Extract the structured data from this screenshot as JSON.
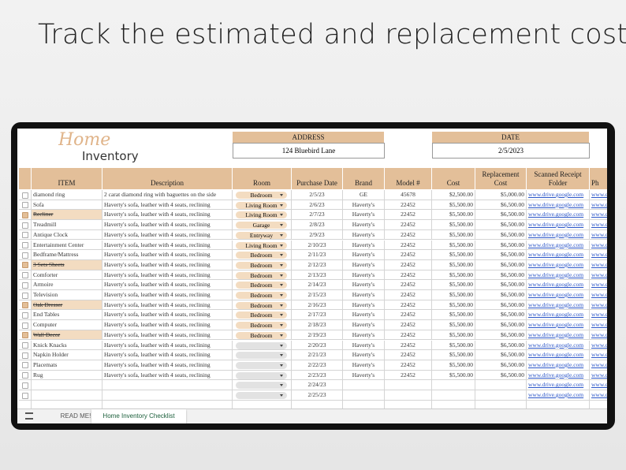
{
  "heading": "Track the estimated and replacement cost",
  "logo": {
    "script": "Home",
    "word": "Inventory"
  },
  "address": {
    "label": "ADDRESS",
    "value": "124 Bluebird Lane"
  },
  "date": {
    "label": "DATE",
    "value": "2/5/2023"
  },
  "columns": [
    "ITEM",
    "Description",
    "Room",
    "Purchase Date",
    "Brand",
    "Model #",
    "Cost",
    "Replacement Cost",
    "Scanned Receipt Folder",
    "Ph"
  ],
  "rows": [
    {
      "checked": false,
      "item": "diamond ring",
      "description": "2 carat diamond ring with baguettes on the side",
      "room": "Bedroom",
      "date": "2/5/23",
      "brand": "GE",
      "model": "45678",
      "cost": "$2,500.00",
      "replacement": "$5,000.00",
      "link": "www.drive.google.com",
      "link2": "www.dr"
    },
    {
      "checked": false,
      "item": "Sofa",
      "description": "Haverty's sofa, leather with 4 seats, reclining",
      "room": "Living Room",
      "date": "2/6/23",
      "brand": "Haverty's",
      "model": "22452",
      "cost": "$5,500.00",
      "replacement": "$6,500.00",
      "link": "www.drive.google.com",
      "link2": "www.dr"
    },
    {
      "checked": true,
      "item": "Recliner",
      "description": "Haverty's sofa, leather with 4 seats, reclining",
      "room": "Living Room",
      "date": "2/7/23",
      "brand": "Haverty's",
      "model": "22452",
      "cost": "$5,500.00",
      "replacement": "$6,500.00",
      "link": "www.drive.google.com",
      "link2": "www.dr"
    },
    {
      "checked": false,
      "item": "Treadmill",
      "description": "Haverty's sofa, leather with 4 seats, reclining",
      "room": "Garage",
      "date": "2/8/23",
      "brand": "Haverty's",
      "model": "22452",
      "cost": "$5,500.00",
      "replacement": "$6,500.00",
      "link": "www.drive.google.com",
      "link2": "www.dr"
    },
    {
      "checked": false,
      "item": "Antique Clock",
      "description": "Haverty's sofa, leather with 4 seats, reclining",
      "room": "Entryway",
      "date": "2/9/23",
      "brand": "Haverty's",
      "model": "22452",
      "cost": "$5,500.00",
      "replacement": "$6,500.00",
      "link": "www.drive.google.com",
      "link2": "www.dr"
    },
    {
      "checked": false,
      "item": "Entertainment Center",
      "description": "Haverty's sofa, leather with 4 seats, reclining",
      "room": "Living Room",
      "date": "2/10/23",
      "brand": "Haverty's",
      "model": "22452",
      "cost": "$5,500.00",
      "replacement": "$6,500.00",
      "link": "www.drive.google.com",
      "link2": "www.dr"
    },
    {
      "checked": false,
      "item": "Bedframe/Mattress",
      "description": "Haverty's sofa, leather with 4 seats, reclining",
      "room": "Bedroom",
      "date": "2/11/23",
      "brand": "Haverty's",
      "model": "22452",
      "cost": "$5,500.00",
      "replacement": "$6,500.00",
      "link": "www.drive.google.com",
      "link2": "www.dr"
    },
    {
      "checked": true,
      "item": "3 Sets Sheets",
      "description": "Haverty's sofa, leather with 4 seats, reclining",
      "room": "Bedroom",
      "date": "2/12/23",
      "brand": "Haverty's",
      "model": "22452",
      "cost": "$5,500.00",
      "replacement": "$6,500.00",
      "link": "www.drive.google.com",
      "link2": "www.dr"
    },
    {
      "checked": false,
      "item": "Comforter",
      "description": "Haverty's sofa, leather with 4 seats, reclining",
      "room": "Bedroom",
      "date": "2/13/23",
      "brand": "Haverty's",
      "model": "22452",
      "cost": "$5,500.00",
      "replacement": "$6,500.00",
      "link": "www.drive.google.com",
      "link2": "www.dr"
    },
    {
      "checked": false,
      "item": "Armoire",
      "description": "Haverty's sofa, leather with 4 seats, reclining",
      "room": "Bedroom",
      "date": "2/14/23",
      "brand": "Haverty's",
      "model": "22452",
      "cost": "$5,500.00",
      "replacement": "$6,500.00",
      "link": "www.drive.google.com",
      "link2": "www.dr"
    },
    {
      "checked": false,
      "item": "Television",
      "description": "Haverty's sofa, leather with 4 seats, reclining",
      "room": "Bedroom",
      "date": "2/15/23",
      "brand": "Haverty's",
      "model": "22452",
      "cost": "$5,500.00",
      "replacement": "$6,500.00",
      "link": "www.drive.google.com",
      "link2": "www.dr"
    },
    {
      "checked": true,
      "item": "Oak Dresser",
      "description": "Haverty's sofa, leather with 4 seats, reclining",
      "room": "Bedroom",
      "date": "2/16/23",
      "brand": "Haverty's",
      "model": "22452",
      "cost": "$5,500.00",
      "replacement": "$6,500.00",
      "link": "www.drive.google.com",
      "link2": "www.dr"
    },
    {
      "checked": false,
      "item": "End Tables",
      "description": "Haverty's sofa, leather with 4 seats, reclining",
      "room": "Bedroom",
      "date": "2/17/23",
      "brand": "Haverty's",
      "model": "22452",
      "cost": "$5,500.00",
      "replacement": "$6,500.00",
      "link": "www.drive.google.com",
      "link2": "www.dr"
    },
    {
      "checked": false,
      "item": "Computer",
      "description": "Haverty's sofa, leather with 4 seats, reclining",
      "room": "Bedroom",
      "date": "2/18/23",
      "brand": "Haverty's",
      "model": "22452",
      "cost": "$5,500.00",
      "replacement": "$6,500.00",
      "link": "www.drive.google.com",
      "link2": "www.dr"
    },
    {
      "checked": true,
      "item": "Wall Decor",
      "description": "Haverty's sofa, leather with 4 seats, reclining",
      "room": "Bedroom",
      "date": "2/19/23",
      "brand": "Haverty's",
      "model": "22452",
      "cost": "$5,500.00",
      "replacement": "$6,500.00",
      "link": "www.drive.google.com",
      "link2": "www.dr"
    },
    {
      "checked": false,
      "item": "Knick Knacks",
      "description": "Haverty's sofa, leather with 4 seats, reclining",
      "date": "2/20/23",
      "brand": "Haverty's",
      "model": "22452",
      "cost": "$5,500.00",
      "replacement": "$6,500.00",
      "link": "www.drive.google.com",
      "link2": "www.dr"
    },
    {
      "checked": false,
      "item": "Napkin Holder",
      "description": "Haverty's sofa, leather with 4 seats, reclining",
      "date": "2/21/23",
      "brand": "Haverty's",
      "model": "22452",
      "cost": "$5,500.00",
      "replacement": "$6,500.00",
      "link": "www.drive.google.com",
      "link2": "www.dr"
    },
    {
      "checked": false,
      "item": "Placemats",
      "description": "Haverty's sofa, leather with 4 seats, reclining",
      "date": "2/22/23",
      "brand": "Haverty's",
      "model": "22452",
      "cost": "$5,500.00",
      "replacement": "$6,500.00",
      "link": "www.drive.google.com",
      "link2": "www.dr"
    },
    {
      "checked": false,
      "item": "Rug",
      "description": "Haverty's sofa, leather with 4 seats, reclining",
      "date": "2/23/23",
      "brand": "Haverty's",
      "model": "22452",
      "cost": "$5,500.00",
      "replacement": "$6,500.00",
      "link": "www.drive.google.com",
      "link2": "www.dr"
    },
    {
      "checked": false,
      "date": "2/24/23",
      "link": "www.drive.google.com",
      "link2": "www.dr"
    },
    {
      "checked": false,
      "date": "2/25/23",
      "link": "www.drive.google.com",
      "link2": "www.dr"
    }
  ],
  "tabs": [
    "READ ME!",
    "Home Inventory Checklist"
  ]
}
